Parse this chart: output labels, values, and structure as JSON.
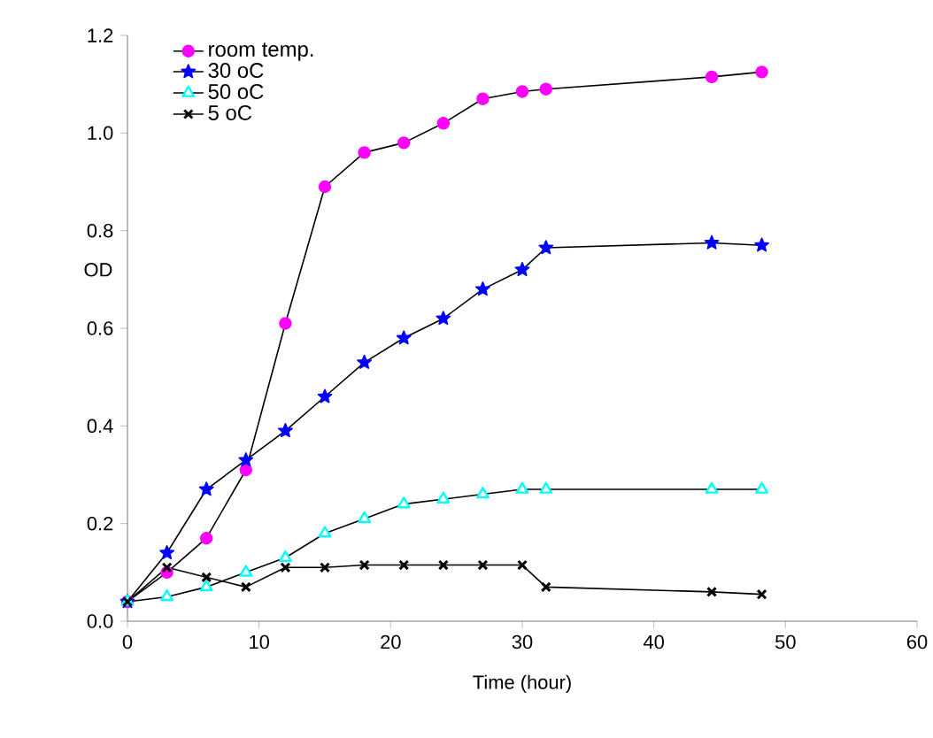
{
  "chart_data": {
    "type": "line",
    "xlabel": "Time (hour)",
    "ylabel": "OD",
    "x": [
      0,
      3,
      6,
      9,
      12,
      15,
      18,
      21,
      24,
      27,
      30,
      31.8,
      44.4,
      48.2
    ],
    "series": [
      {
        "name": "room temp.",
        "color": "#ff00ff",
        "marker": "circle",
        "values": [
          0.04,
          0.1,
          0.17,
          0.31,
          0.61,
          0.89,
          0.96,
          0.98,
          1.02,
          1.07,
          1.085,
          1.09,
          1.115,
          1.125
        ]
      },
      {
        "name": "30 oC",
        "color": "#0000ff",
        "marker": "star",
        "values": [
          0.04,
          0.14,
          0.27,
          0.33,
          0.39,
          0.46,
          0.53,
          0.58,
          0.62,
          0.68,
          0.72,
          0.765,
          0.775,
          0.77
        ]
      },
      {
        "name": "50 oC",
        "color": "#00ffff",
        "marker": "triangle",
        "values": [
          0.04,
          0.05,
          0.07,
          0.1,
          0.13,
          0.18,
          0.21,
          0.24,
          0.25,
          0.26,
          0.27,
          0.27,
          0.27,
          0.27
        ]
      },
      {
        "name": "5 oC",
        "color": "#000000",
        "marker": "cross",
        "values": [
          0.04,
          0.11,
          0.09,
          0.07,
          0.11,
          0.11,
          0.115,
          0.115,
          0.115,
          0.115,
          0.115,
          0.07,
          0.06,
          0.055
        ]
      }
    ],
    "xlim": [
      0,
      60
    ],
    "xticks": [
      0,
      10,
      20,
      30,
      40,
      50,
      60
    ],
    "ylim": [
      0,
      1.2
    ],
    "yticks": [
      {
        "value": 0,
        "label": "0.0"
      },
      {
        "value": 0.2,
        "label": "0.2"
      },
      {
        "value": 0.4,
        "label": "0.4"
      },
      {
        "value": 0.6,
        "label": "0.6"
      },
      {
        "value": 0.8,
        "label": "0.8"
      },
      {
        "value": 1.0,
        "label": "1.0"
      },
      {
        "value": 1.2,
        "label": "1.2"
      }
    ],
    "legend": "top left",
    "line_style": "solid"
  }
}
